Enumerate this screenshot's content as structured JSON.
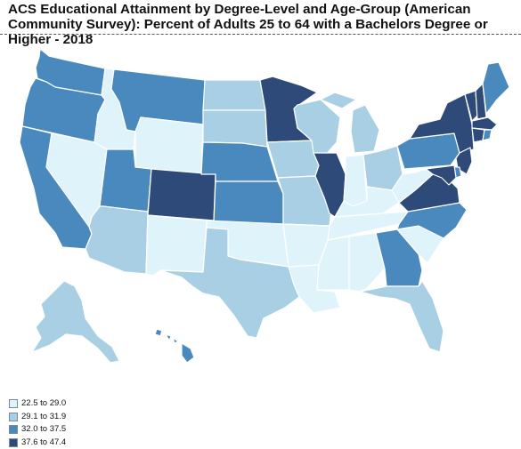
{
  "title": "ACS Educational Attainment by Degree-Level and Age-Group (American Community Survey): Percent of Adults 25 to 64 with a Bachelors Degree or Higher - 2018",
  "colors": {
    "bin1": "#dff3fb",
    "bin2": "#a9cfe5",
    "bin3": "#4a89bd",
    "bin4": "#2d4a78"
  },
  "legend": [
    {
      "label": "22.5 to 29.0",
      "bin": "bin1"
    },
    {
      "label": "29.1 to 31.9",
      "bin": "bin2"
    },
    {
      "label": "32.0 to 37.5",
      "bin": "bin3"
    },
    {
      "label": "37.6 to 47.4",
      "bin": "bin4"
    }
  ],
  "states": {
    "WA": "bin3",
    "OR": "bin3",
    "CA": "bin3",
    "NV": "bin1",
    "ID": "bin1",
    "MT": "bin3",
    "WY": "bin1",
    "UT": "bin3",
    "AZ": "bin2",
    "CO": "bin4",
    "NM": "bin1",
    "ND": "bin2",
    "SD": "bin2",
    "NE": "bin3",
    "KS": "bin3",
    "OK": "bin1",
    "TX": "bin2",
    "MN": "bin4",
    "IA": "bin2",
    "MO": "bin2",
    "AR": "bin1",
    "LA": "bin1",
    "WI": "bin2",
    "IL": "bin4",
    "MI": "bin2",
    "IN": "bin1",
    "OH": "bin2",
    "KY": "bin1",
    "TN": "bin1",
    "MS": "bin1",
    "AL": "bin1",
    "GA": "bin3",
    "FL": "bin2",
    "SC": "bin1",
    "NC": "bin3",
    "VA": "bin4",
    "WV": "bin1",
    "PA": "bin3",
    "NY": "bin4",
    "VT": "bin4",
    "NH": "bin4",
    "ME": "bin3",
    "MA": "bin4",
    "CT": "bin4",
    "RI": "bin3",
    "NJ": "bin4",
    "DE": "bin3",
    "MD": "bin4",
    "AK": "bin2",
    "HI": "bin3"
  }
}
